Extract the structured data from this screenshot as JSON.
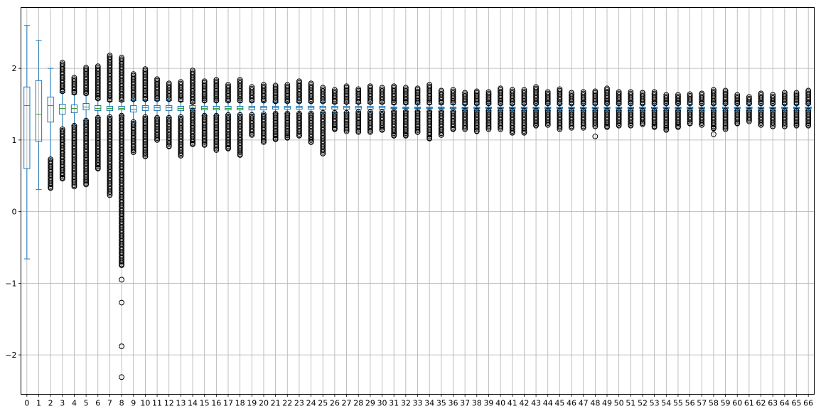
{
  "chart_data": {
    "type": "boxplot",
    "title": "",
    "xlabel": "",
    "ylabel": "",
    "grid": true,
    "ylim": [
      -2.55,
      2.85
    ],
    "yticks": [
      -2,
      -1,
      0,
      1,
      2
    ],
    "ytick_labels": [
      "−2",
      "−1",
      "0",
      "1",
      "2"
    ],
    "categories": [
      "0",
      "1",
      "2",
      "3",
      "4",
      "5",
      "6",
      "7",
      "8",
      "9",
      "10",
      "11",
      "12",
      "13",
      "14",
      "15",
      "16",
      "17",
      "18",
      "19",
      "20",
      "21",
      "22",
      "23",
      "24",
      "25",
      "26",
      "27",
      "28",
      "29",
      "30",
      "31",
      "32",
      "33",
      "34",
      "35",
      "36",
      "37",
      "38",
      "39",
      "40",
      "41",
      "42",
      "43",
      "44",
      "45",
      "46",
      "47",
      "48",
      "49",
      "50",
      "51",
      "52",
      "53",
      "54",
      "55",
      "56",
      "57",
      "58",
      "59",
      "60",
      "61",
      "62",
      "63",
      "64",
      "65",
      "66"
    ],
    "boxes": [
      {
        "whislo": -0.66,
        "q1": 0.6,
        "med": 1.48,
        "q3": 1.74,
        "whishi": 2.6,
        "fliers": []
      },
      {
        "whislo": 0.31,
        "q1": 0.98,
        "med": 1.36,
        "q3": 1.83,
        "whishi": 2.39,
        "fliers": []
      },
      {
        "whislo": 0.73,
        "q1": 1.25,
        "med": 1.48,
        "q3": 1.6,
        "whishi": 2.0,
        "fliers_low": [
          0.33,
          0.73
        ]
      },
      {
        "whislo": 1.15,
        "q1": 1.36,
        "med": 1.44,
        "q3": 1.5,
        "whishi": 1.66,
        "fliers_high": [
          1.68,
          2.08
        ],
        "fliers_low": [
          0.46,
          1.15
        ]
      },
      {
        "whislo": 1.2,
        "q1": 1.38,
        "med": 1.44,
        "q3": 1.49,
        "whishi": 1.64,
        "fliers_high": [
          1.66,
          1.87
        ],
        "fliers_low": [
          0.35,
          1.2
        ]
      },
      {
        "whislo": 1.27,
        "q1": 1.42,
        "med": 1.46,
        "q3": 1.51,
        "whishi": 1.63,
        "fliers_high": [
          1.65,
          2.01
        ],
        "fliers_low": [
          0.38,
          1.27
        ]
      },
      {
        "whislo": 1.31,
        "q1": 1.41,
        "med": 1.44,
        "q3": 1.48,
        "whishi": 1.56,
        "fliers_high": [
          1.58,
          2.03
        ],
        "fliers_low": [
          0.6,
          1.31
        ]
      },
      {
        "whislo": 1.32,
        "q1": 1.41,
        "med": 1.44,
        "q3": 1.47,
        "whishi": 1.54,
        "fliers_high": [
          1.56,
          2.18
        ],
        "fliers_low": [
          0.23,
          1.32
        ]
      },
      {
        "whislo": 1.34,
        "q1": 1.42,
        "med": 1.44,
        "q3": 1.47,
        "whishi": 1.54,
        "fliers_high": [
          1.56,
          2.15
        ],
        "fliers_low": [
          -0.75,
          1.34
        ],
        "fliers_extra": [
          -0.95,
          -1.27,
          -1.88,
          -2.31
        ]
      },
      {
        "whislo": 1.25,
        "q1": 1.39,
        "med": 1.43,
        "q3": 1.48,
        "whishi": 1.55,
        "fliers_high": [
          1.57,
          1.92
        ],
        "fliers_low": [
          0.83,
          1.25
        ]
      },
      {
        "whislo": 1.32,
        "q1": 1.41,
        "med": 1.45,
        "q3": 1.48,
        "whishi": 1.55,
        "fliers_high": [
          1.57,
          1.99
        ],
        "fliers_low": [
          0.77,
          1.32
        ]
      },
      {
        "whislo": 1.31,
        "q1": 1.41,
        "med": 1.45,
        "q3": 1.48,
        "whishi": 1.55,
        "fliers_high": [
          1.57,
          1.85
        ],
        "fliers_low": [
          1.0,
          1.31
        ]
      },
      {
        "whislo": 1.31,
        "q1": 1.41,
        "med": 1.45,
        "q3": 1.48,
        "whishi": 1.55,
        "fliers_high": [
          1.57,
          1.79
        ],
        "fliers_low": [
          0.91,
          1.31
        ]
      },
      {
        "whislo": 1.32,
        "q1": 1.41,
        "med": 1.44,
        "q3": 1.47,
        "whishi": 1.54,
        "fliers_high": [
          1.56,
          1.81
        ],
        "fliers_low": [
          0.78,
          1.32
        ]
      },
      {
        "whislo": 1.41,
        "q1": 1.44,
        "med": 1.46,
        "q3": 1.48,
        "whishi": 1.51,
        "fliers_high": [
          1.53,
          1.97
        ],
        "fliers_low": [
          0.94,
          1.41
        ]
      },
      {
        "whislo": 1.34,
        "q1": 1.42,
        "med": 1.44,
        "q3": 1.47,
        "whishi": 1.53,
        "fliers_high": [
          1.55,
          1.82
        ],
        "fliers_low": [
          0.93,
          1.34
        ]
      },
      {
        "whislo": 1.34,
        "q1": 1.42,
        "med": 1.44,
        "q3": 1.47,
        "whishi": 1.53,
        "fliers_high": [
          1.55,
          1.84
        ],
        "fliers_low": [
          0.86,
          1.34
        ]
      },
      {
        "whislo": 1.35,
        "q1": 1.42,
        "med": 1.44,
        "q3": 1.47,
        "whishi": 1.53,
        "fliers_high": [
          1.55,
          1.77
        ],
        "fliers_low": [
          0.88,
          1.35
        ]
      },
      {
        "whislo": 1.35,
        "q1": 1.42,
        "med": 1.44,
        "q3": 1.47,
        "whishi": 1.53,
        "fliers_high": [
          1.55,
          1.84
        ],
        "fliers_low": [
          0.79,
          1.35
        ]
      },
      {
        "whislo": 1.35,
        "q1": 1.42,
        "med": 1.45,
        "q3": 1.47,
        "whishi": 1.53,
        "fliers_high": [
          1.55,
          1.74
        ],
        "fliers_low": [
          1.07,
          1.35
        ]
      },
      {
        "whislo": 1.36,
        "q1": 1.42,
        "med": 1.45,
        "q3": 1.47,
        "whishi": 1.53,
        "fliers_high": [
          1.55,
          1.77
        ],
        "fliers_low": [
          0.97,
          1.36
        ]
      },
      {
        "whislo": 1.37,
        "q1": 1.43,
        "med": 1.45,
        "q3": 1.47,
        "whishi": 1.52,
        "fliers_high": [
          1.54,
          1.76
        ],
        "fliers_low": [
          1.01,
          1.37
        ]
      },
      {
        "whislo": 1.37,
        "q1": 1.43,
        "med": 1.45,
        "q3": 1.47,
        "whishi": 1.52,
        "fliers_high": [
          1.54,
          1.77
        ],
        "fliers_low": [
          1.03,
          1.37
        ]
      },
      {
        "whislo": 1.37,
        "q1": 1.43,
        "med": 1.45,
        "q3": 1.47,
        "whishi": 1.52,
        "fliers_high": [
          1.54,
          1.82
        ],
        "fliers_low": [
          1.06,
          1.37
        ]
      },
      {
        "whislo": 1.37,
        "q1": 1.43,
        "med": 1.45,
        "q3": 1.47,
        "whishi": 1.52,
        "fliers_high": [
          1.54,
          1.79
        ],
        "fliers_low": [
          0.97,
          1.37
        ]
      },
      {
        "whislo": 1.38,
        "q1": 1.43,
        "med": 1.45,
        "q3": 1.47,
        "whishi": 1.52,
        "fliers_high": [
          1.54,
          1.73
        ],
        "fliers_low": [
          0.81,
          1.38
        ]
      },
      {
        "whislo": 1.38,
        "q1": 1.43,
        "med": 1.45,
        "q3": 1.47,
        "whishi": 1.51,
        "fliers_high": [
          1.53,
          1.7
        ],
        "fliers_low": [
          1.15,
          1.38
        ]
      },
      {
        "whislo": 1.38,
        "q1": 1.43,
        "med": 1.45,
        "q3": 1.47,
        "whishi": 1.51,
        "fliers_high": [
          1.53,
          1.75
        ],
        "fliers_low": [
          1.12,
          1.38
        ]
      },
      {
        "whislo": 1.39,
        "q1": 1.43,
        "med": 1.45,
        "q3": 1.47,
        "whishi": 1.51,
        "fliers_high": [
          1.53,
          1.71
        ],
        "fliers_low": [
          1.11,
          1.39
        ]
      },
      {
        "whislo": 1.39,
        "q1": 1.43,
        "med": 1.45,
        "q3": 1.47,
        "whishi": 1.51,
        "fliers_high": [
          1.53,
          1.75
        ],
        "fliers_low": [
          1.11,
          1.39
        ]
      },
      {
        "whislo": 1.39,
        "q1": 1.43,
        "med": 1.45,
        "q3": 1.47,
        "whishi": 1.51,
        "fliers_high": [
          1.53,
          1.73
        ],
        "fliers_low": [
          1.14,
          1.39
        ]
      },
      {
        "whislo": 1.4,
        "q1": 1.44,
        "med": 1.45,
        "q3": 1.46,
        "whishi": 1.5,
        "fliers_high": [
          1.52,
          1.75
        ],
        "fliers_low": [
          1.06,
          1.4
        ]
      },
      {
        "whislo": 1.4,
        "q1": 1.44,
        "med": 1.45,
        "q3": 1.46,
        "whishi": 1.5,
        "fliers_high": [
          1.52,
          1.73
        ],
        "fliers_low": [
          1.06,
          1.4
        ]
      },
      {
        "whislo": 1.4,
        "q1": 1.44,
        "med": 1.45,
        "q3": 1.46,
        "whishi": 1.5,
        "fliers_high": [
          1.52,
          1.72
        ],
        "fliers_low": [
          1.11,
          1.4
        ]
      },
      {
        "whislo": 1.4,
        "q1": 1.44,
        "med": 1.45,
        "q3": 1.46,
        "whishi": 1.5,
        "fliers_high": [
          1.52,
          1.77
        ],
        "fliers_low": [
          1.02,
          1.4
        ]
      },
      {
        "whislo": 1.4,
        "q1": 1.44,
        "med": 1.45,
        "q3": 1.46,
        "whishi": 1.5,
        "fliers_high": [
          1.52,
          1.69
        ],
        "fliers_low": [
          1.07,
          1.4
        ]
      },
      {
        "whislo": 1.4,
        "q1": 1.44,
        "med": 1.45,
        "q3": 1.46,
        "whishi": 1.5,
        "fliers_high": [
          1.52,
          1.7
        ],
        "fliers_low": [
          1.15,
          1.4
        ]
      },
      {
        "whislo": 1.41,
        "q1": 1.44,
        "med": 1.45,
        "q3": 1.46,
        "whishi": 1.49,
        "fliers_high": [
          1.51,
          1.66
        ],
        "fliers_low": [
          1.15,
          1.41
        ]
      },
      {
        "whislo": 1.41,
        "q1": 1.44,
        "med": 1.45,
        "q3": 1.46,
        "whishi": 1.49,
        "fliers_high": [
          1.51,
          1.68
        ],
        "fliers_low": [
          1.12,
          1.41
        ]
      },
      {
        "whislo": 1.41,
        "q1": 1.44,
        "med": 1.45,
        "q3": 1.46,
        "whishi": 1.49,
        "fliers_high": [
          1.51,
          1.67
        ],
        "fliers_low": [
          1.15,
          1.41
        ]
      },
      {
        "whislo": 1.41,
        "q1": 1.44,
        "med": 1.45,
        "q3": 1.46,
        "whishi": 1.49,
        "fliers_high": [
          1.51,
          1.72
        ],
        "fliers_low": [
          1.15,
          1.41
        ]
      },
      {
        "whislo": 1.41,
        "q1": 1.44,
        "med": 1.45,
        "q3": 1.46,
        "whishi": 1.49,
        "fliers_high": [
          1.51,
          1.7
        ],
        "fliers_low": [
          1.1,
          1.41
        ]
      },
      {
        "whislo": 1.41,
        "q1": 1.44,
        "med": 1.45,
        "q3": 1.46,
        "whishi": 1.49,
        "fliers_high": [
          1.51,
          1.7
        ],
        "fliers_low": [
          1.1,
          1.41
        ]
      },
      {
        "whislo": 1.41,
        "q1": 1.44,
        "med": 1.45,
        "q3": 1.46,
        "whishi": 1.49,
        "fliers_high": [
          1.51,
          1.74
        ],
        "fliers_low": [
          1.2,
          1.41
        ]
      },
      {
        "whislo": 1.41,
        "q1": 1.44,
        "med": 1.45,
        "q3": 1.46,
        "whishi": 1.49,
        "fliers_high": [
          1.51,
          1.67
        ],
        "fliers_low": [
          1.21,
          1.41
        ]
      },
      {
        "whislo": 1.41,
        "q1": 1.44,
        "med": 1.45,
        "q3": 1.46,
        "whishi": 1.49,
        "fliers_high": [
          1.51,
          1.71
        ],
        "fliers_low": [
          1.15,
          1.41
        ]
      },
      {
        "whislo": 1.41,
        "q1": 1.44,
        "med": 1.45,
        "q3": 1.46,
        "whishi": 1.49,
        "fliers_high": [
          1.51,
          1.66
        ],
        "fliers_low": [
          1.17,
          1.41
        ]
      },
      {
        "whislo": 1.41,
        "q1": 1.44,
        "med": 1.45,
        "q3": 1.46,
        "whishi": 1.49,
        "fliers_high": [
          1.51,
          1.67
        ],
        "fliers_low": [
          1.17,
          1.41
        ]
      },
      {
        "whislo": 1.41,
        "q1": 1.44,
        "med": 1.45,
        "q3": 1.46,
        "whishi": 1.49,
        "fliers_high": [
          1.51,
          1.68
        ],
        "fliers_low": [
          1.19,
          1.41
        ],
        "fliers_extra": [
          1.05
        ]
      },
      {
        "whislo": 1.41,
        "q1": 1.44,
        "med": 1.45,
        "q3": 1.46,
        "whishi": 1.49,
        "fliers_high": [
          1.51,
          1.72
        ],
        "fliers_low": [
          1.18,
          1.41
        ]
      },
      {
        "whislo": 1.41,
        "q1": 1.44,
        "med": 1.45,
        "q3": 1.46,
        "whishi": 1.49,
        "fliers_high": [
          1.51,
          1.67
        ],
        "fliers_low": [
          1.2,
          1.41
        ]
      },
      {
        "whislo": 1.41,
        "q1": 1.44,
        "med": 1.45,
        "q3": 1.46,
        "whishi": 1.49,
        "fliers_high": [
          1.51,
          1.67
        ],
        "fliers_low": [
          1.2,
          1.41
        ]
      },
      {
        "whislo": 1.41,
        "q1": 1.44,
        "med": 1.45,
        "q3": 1.46,
        "whishi": 1.49,
        "fliers_high": [
          1.51,
          1.66
        ],
        "fliers_low": [
          1.22,
          1.41
        ]
      },
      {
        "whislo": 1.41,
        "q1": 1.44,
        "med": 1.45,
        "q3": 1.46,
        "whishi": 1.49,
        "fliers_high": [
          1.51,
          1.67
        ],
        "fliers_low": [
          1.18,
          1.41
        ]
      },
      {
        "whislo": 1.41,
        "q1": 1.44,
        "med": 1.45,
        "q3": 1.46,
        "whishi": 1.49,
        "fliers_high": [
          1.51,
          1.63
        ],
        "fliers_low": [
          1.14,
          1.41
        ]
      },
      {
        "whislo": 1.41,
        "q1": 1.44,
        "med": 1.45,
        "q3": 1.46,
        "whishi": 1.49,
        "fliers_high": [
          1.51,
          1.63
        ],
        "fliers_low": [
          1.18,
          1.41
        ]
      },
      {
        "whislo": 1.41,
        "q1": 1.44,
        "med": 1.45,
        "q3": 1.46,
        "whishi": 1.49,
        "fliers_high": [
          1.51,
          1.64
        ],
        "fliers_low": [
          1.23,
          1.41
        ]
      },
      {
        "whislo": 1.41,
        "q1": 1.44,
        "med": 1.45,
        "q3": 1.46,
        "whishi": 1.49,
        "fliers_high": [
          1.51,
          1.65
        ],
        "fliers_low": [
          1.21,
          1.41
        ]
      },
      {
        "whislo": 1.41,
        "q1": 1.44,
        "med": 1.45,
        "q3": 1.46,
        "whishi": 1.49,
        "fliers_high": [
          1.51,
          1.7
        ],
        "fliers_low": [
          1.16,
          1.41
        ],
        "fliers_extra": [
          1.08
        ]
      },
      {
        "whislo": 1.41,
        "q1": 1.44,
        "med": 1.45,
        "q3": 1.46,
        "whishi": 1.49,
        "fliers_high": [
          1.51,
          1.69
        ],
        "fliers_low": [
          1.15,
          1.41
        ]
      },
      {
        "whislo": 1.41,
        "q1": 1.44,
        "med": 1.45,
        "q3": 1.46,
        "whishi": 1.49,
        "fliers_high": [
          1.51,
          1.63
        ],
        "fliers_low": [
          1.23,
          1.41
        ]
      },
      {
        "whislo": 1.41,
        "q1": 1.44,
        "med": 1.45,
        "q3": 1.46,
        "whishi": 1.49,
        "fliers_high": [
          1.51,
          1.6
        ],
        "fliers_low": [
          1.26,
          1.41
        ]
      },
      {
        "whislo": 1.41,
        "q1": 1.44,
        "med": 1.45,
        "q3": 1.46,
        "whishi": 1.49,
        "fliers_high": [
          1.51,
          1.65
        ],
        "fliers_low": [
          1.21,
          1.41
        ]
      },
      {
        "whislo": 1.41,
        "q1": 1.44,
        "med": 1.45,
        "q3": 1.46,
        "whishi": 1.49,
        "fliers_high": [
          1.51,
          1.63
        ],
        "fliers_low": [
          1.19,
          1.41
        ]
      },
      {
        "whislo": 1.41,
        "q1": 1.44,
        "med": 1.45,
        "q3": 1.46,
        "whishi": 1.49,
        "fliers_high": [
          1.51,
          1.66
        ],
        "fliers_low": [
          1.19,
          1.41
        ]
      },
      {
        "whislo": 1.41,
        "q1": 1.44,
        "med": 1.45,
        "q3": 1.46,
        "whishi": 1.49,
        "fliers_high": [
          1.51,
          1.66
        ],
        "fliers_low": [
          1.2,
          1.41
        ]
      },
      {
        "whislo": 1.41,
        "q1": 1.44,
        "med": 1.45,
        "q3": 1.46,
        "whishi": 1.49,
        "fliers_high": [
          1.51,
          1.69
        ],
        "fliers_low": [
          1.2,
          1.41
        ]
      }
    ],
    "colors": {
      "box": "#1f77b4",
      "median": "#2ca02c",
      "flier": "#000000",
      "grid": "#b0b0b0",
      "axes": "#000000",
      "background": "#ffffff"
    }
  }
}
